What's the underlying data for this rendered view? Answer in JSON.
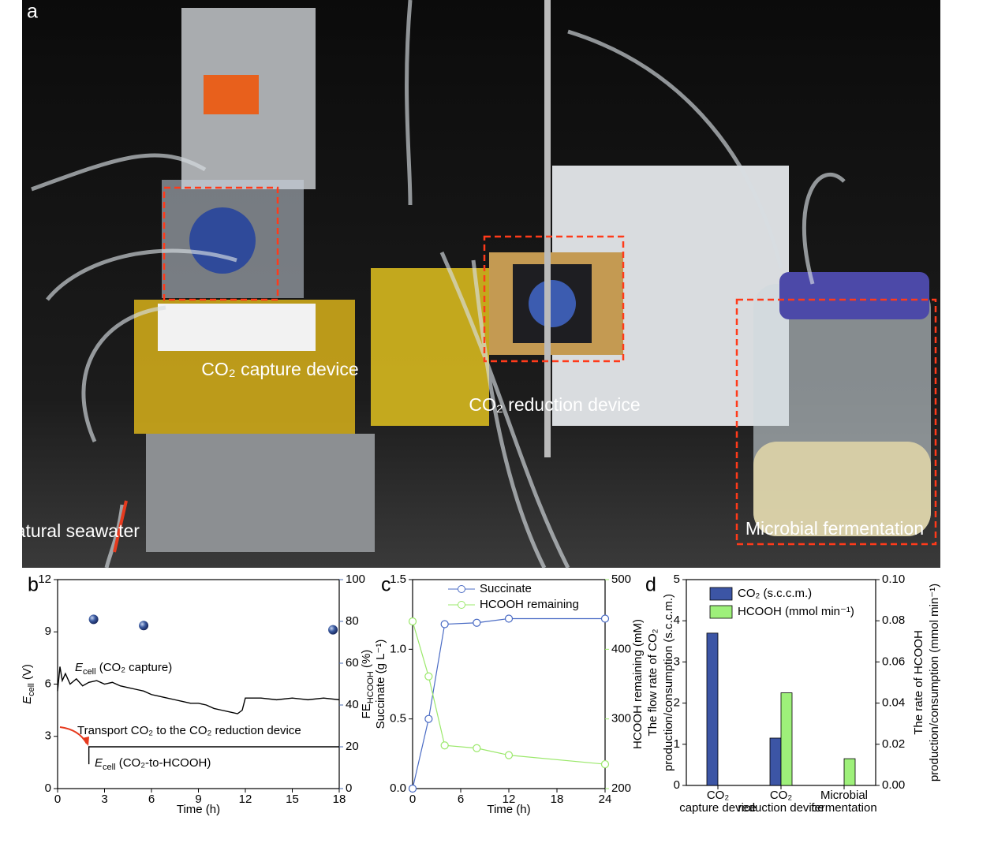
{
  "photo": {
    "panel_label": "a",
    "labels": [
      "CO₂ capture device",
      "CO₂ reduction device",
      "Natural seawater",
      "Microbial fermentation"
    ]
  },
  "chart_data": [
    {
      "type": "line",
      "panel_label": "b",
      "x_label": "Time (h)",
      "y_label": [
        {
          "t": "E",
          "style": "italic"
        },
        {
          "t": "cell",
          "style": "sub"
        },
        {
          "t": " (V)"
        }
      ],
      "y2_label": [
        {
          "t": "FE"
        },
        {
          "t": "HCOOH",
          "style": "sub"
        },
        {
          "t": " (%)"
        }
      ],
      "y2_color": "#4a6bb0",
      "xlim": [
        0,
        18
      ],
      "xticks": [
        0,
        3,
        6,
        9,
        12,
        15,
        18
      ],
      "ylim": [
        0,
        12
      ],
      "yticks": [
        0,
        3,
        6,
        9,
        12
      ],
      "y2lim": [
        0,
        100
      ],
      "y2ticks": [
        0,
        20,
        40,
        60,
        80,
        100
      ],
      "series": [
        {
          "color": "#000000",
          "x": [
            0,
            0.15,
            0.3,
            0.5,
            0.8,
            1.2,
            1.6,
            2,
            2.5,
            3,
            3.5,
            4,
            4.5,
            5,
            5.5,
            6,
            6.5,
            7,
            7.5,
            8,
            8.5,
            9,
            9.5,
            10,
            10.5,
            11,
            11.5,
            11.8,
            12,
            13,
            14,
            15,
            16,
            17,
            18
          ],
          "values": [
            5.6,
            7.0,
            6.2,
            6.6,
            6.0,
            6.3,
            5.9,
            6.1,
            6.2,
            6.0,
            6.1,
            5.9,
            5.8,
            5.7,
            5.6,
            5.4,
            5.3,
            5.2,
            5.1,
            5.0,
            4.9,
            4.9,
            4.8,
            4.6,
            4.5,
            4.4,
            4.3,
            4.5,
            5.2,
            5.2,
            5.1,
            5.2,
            5.1,
            5.2,
            5.1
          ]
        },
        {
          "color": "#000000",
          "x": [
            2,
            2,
            18
          ],
          "values": [
            1.4,
            2.4,
            2.4
          ]
        },
        {
          "color": "#3a5aa0",
          "axis": "y2",
          "marker": "sphere",
          "x": [
            2.3,
            5.5,
            17.6
          ],
          "values": [
            81,
            78,
            76
          ]
        }
      ],
      "annotations": [
        [
          {
            "t": "E",
            "style": "italic"
          },
          {
            "t": "cell",
            "style": "sub"
          },
          {
            "t": " (CO₂ capture)"
          }
        ],
        [
          {
            "t": "Transport CO₂ to the CO₂ reduction device"
          }
        ],
        [
          {
            "t": "E",
            "style": "italic"
          },
          {
            "t": "cell",
            "style": "sub"
          },
          {
            "t": " (CO₂-to-HCOOH)"
          }
        ]
      ]
    },
    {
      "type": "line",
      "panel_label": "c",
      "x_label": "Time (h)",
      "y_label": "Succinate (g L⁻¹)",
      "y2_label": "HCOOH remaining (mM)",
      "y_color": "#4a6bc4",
      "y2_color": "#9be86b",
      "xlim": [
        0,
        24
      ],
      "xticks": [
        0,
        6,
        12,
        18,
        24
      ],
      "ylim": [
        0,
        1.5
      ],
      "yticks": [
        {
          "value": 0,
          "label": "0.0"
        },
        0.5,
        {
          "value": 1,
          "label": "1.0"
        },
        1.5
      ],
      "y2lim": [
        200,
        500
      ],
      "y2ticks": [
        200,
        300,
        400,
        500
      ],
      "legend": "top",
      "series": [
        {
          "name": "Succinate",
          "color": "#4a6bc4",
          "marker": "circle",
          "x": [
            0,
            2,
            4,
            8,
            12,
            24
          ],
          "values": [
            0,
            0.5,
            1.18,
            1.19,
            1.22,
            1.22
          ]
        },
        {
          "name": "HCOOH remaining",
          "color": "#9be86b",
          "marker": "circle",
          "axis": "y2",
          "x": [
            0,
            2,
            4,
            8,
            12,
            24
          ],
          "values": [
            440,
            361,
            262,
            258,
            248,
            235
          ]
        }
      ]
    },
    {
      "type": "bar",
      "panel_label": "d",
      "categories": [
        [
          "CO₂",
          "capture device"
        ],
        [
          "CO₂",
          "reduction device"
        ],
        [
          "Microbial",
          "fermentation"
        ]
      ],
      "y_label": [
        "The flow rate of CO₂",
        "production/consumption (s.c.c.m.)"
      ],
      "y2_label": [
        "The rate of HCOOH",
        "production/consumption (mmol min⁻¹)"
      ],
      "ylim": [
        0,
        5
      ],
      "yticks": [
        0,
        1,
        2,
        3,
        4,
        5
      ],
      "y2lim": [
        0,
        0.1
      ],
      "y2ticks": [
        {
          "value": 0,
          "label": "0.00"
        },
        {
          "value": 0.02,
          "label": "0.02"
        },
        {
          "value": 0.04,
          "label": "0.04"
        },
        {
          "value": 0.06,
          "label": "0.06"
        },
        {
          "value": 0.08,
          "label": "0.08"
        },
        {
          "value": 0.1,
          "label": "0.10"
        }
      ],
      "legend": "top-left",
      "series": [
        {
          "name": "CO₂ (s.c.c.m.)",
          "color": "#3c55a5",
          "values": [
            3.7,
            1.15,
            null
          ]
        },
        {
          "name": "HCOOH (mmol min⁻¹)",
          "color": "#9ef07a",
          "axis": "y2",
          "values": [
            null,
            0.045,
            0.013
          ]
        }
      ]
    }
  ]
}
